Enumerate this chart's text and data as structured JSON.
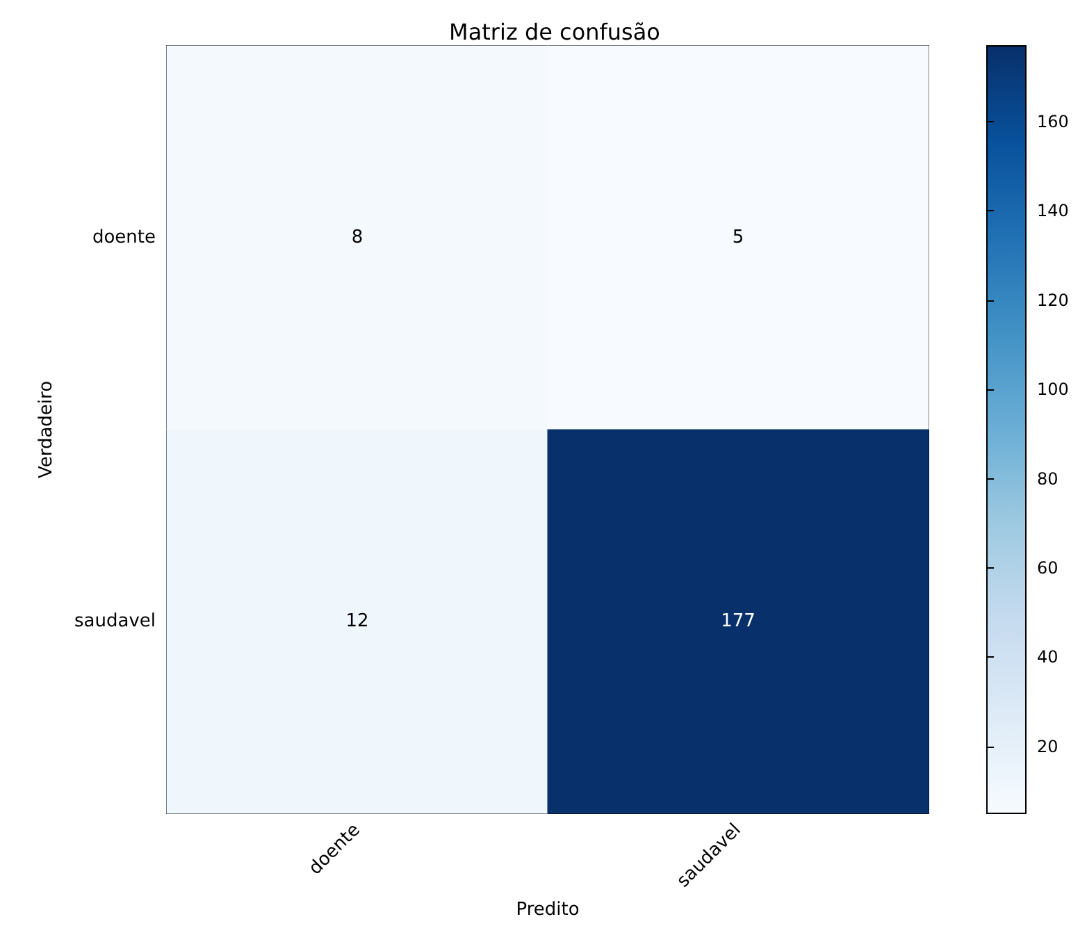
{
  "chart_data": {
    "type": "heatmap",
    "title": "Matriz de confusão",
    "xlabel": "Predito",
    "ylabel": "Verdadeiro",
    "categories": [
      "doente",
      "saudavel"
    ],
    "y_categories": [
      "doente",
      "saudavel"
    ],
    "cells": [
      [
        8,
        5
      ],
      [
        12,
        177
      ]
    ],
    "clim": [
      5,
      177
    ],
    "cticks": [
      20,
      40,
      60,
      80,
      100,
      120,
      140,
      160
    ],
    "data_labels": true
  }
}
